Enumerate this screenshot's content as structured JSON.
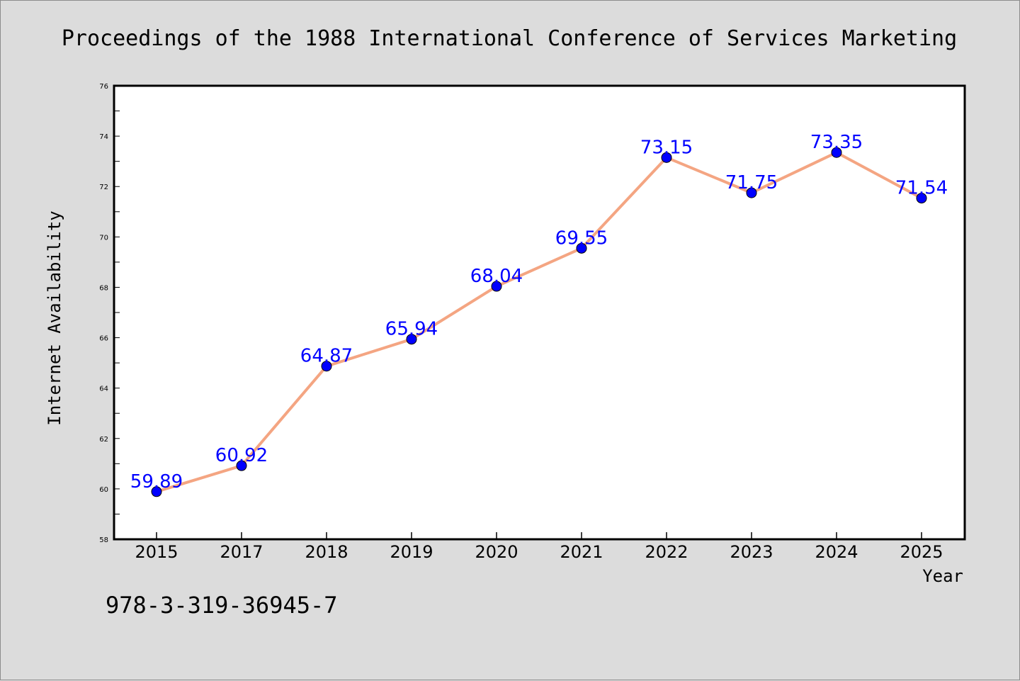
{
  "chart_data": {
    "type": "line",
    "title": "Proceedings of the 1988 International Conference of Services Marketing",
    "xlabel": "Year",
    "ylabel": "Internet Availability",
    "categories": [
      "2015",
      "2017",
      "2018",
      "2019",
      "2020",
      "2021",
      "2022",
      "2023",
      "2024",
      "2025"
    ],
    "series": [
      {
        "values": [
          59.89,
          60.92,
          64.87,
          65.94,
          68.04,
          69.55,
          73.15,
          71.75,
          73.35,
          71.54
        ]
      }
    ],
    "data_labels": [
      "59.89",
      "60.92",
      "64.87",
      "65.94",
      "68.04",
      "69.55",
      "73.15",
      "71.75",
      "73.35",
      "71.54"
    ],
    "ylim": [
      58,
      76
    ],
    "yticks": [
      "58",
      "60",
      "62",
      "64",
      "66",
      "68",
      "70",
      "72",
      "74",
      "76"
    ],
    "grid": false,
    "legend": "none",
    "colors": {
      "line": "#f4a582",
      "marker": "#0000ff",
      "label": "#0000ff",
      "plot_background": "#ffffff",
      "page_background": "#dcdcdc"
    }
  },
  "footer": {
    "isbn": "978-3-319-36945-7"
  }
}
